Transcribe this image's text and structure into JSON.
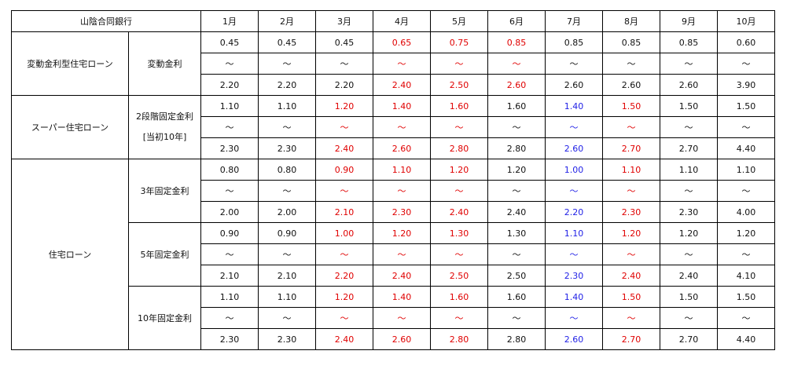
{
  "bank_name": "山陰合同銀行",
  "months": [
    "1月",
    "2月",
    "3月",
    "4月",
    "5月",
    "6月",
    "7月",
    "8月",
    "9月",
    "10月"
  ],
  "tilde": "～",
  "colors": {
    "red": "#e00000",
    "blue": "#1f1fe6",
    "black": "#111111"
  },
  "products": [
    {
      "name": "変動金利型住宅ローン",
      "plans": [
        {
          "name": [
            "変動金利"
          ],
          "low": [
            "0.45",
            "0.45",
            "0.45",
            "0.65",
            "0.75",
            "0.85",
            "0.85",
            "0.85",
            "0.85",
            "0.60"
          ],
          "high": [
            "2.20",
            "2.20",
            "2.20",
            "2.40",
            "2.50",
            "2.60",
            "2.60",
            "2.60",
            "2.60",
            "3.90"
          ],
          "color": [
            "black",
            "black",
            "black",
            "red",
            "red",
            "red",
            "black",
            "black",
            "black",
            "black"
          ]
        }
      ]
    },
    {
      "name": "スーパー住宅ローン",
      "plans": [
        {
          "name": [
            "2段階固定金利",
            "[当初10年]"
          ],
          "low": [
            "1.10",
            "1.10",
            "1.20",
            "1.40",
            "1.60",
            "1.60",
            "1.40",
            "1.50",
            "1.50",
            "1.50"
          ],
          "high": [
            "2.30",
            "2.30",
            "2.40",
            "2.60",
            "2.80",
            "2.80",
            "2.60",
            "2.70",
            "2.70",
            "4.40"
          ],
          "color": [
            "black",
            "black",
            "red",
            "red",
            "red",
            "black",
            "blue",
            "red",
            "black",
            "black"
          ]
        }
      ]
    },
    {
      "name": "住宅ローン",
      "plans": [
        {
          "name": [
            "3年固定金利"
          ],
          "low": [
            "0.80",
            "0.80",
            "0.90",
            "1.10",
            "1.20",
            "1.20",
            "1.00",
            "1.10",
            "1.10",
            "1.10"
          ],
          "high": [
            "2.00",
            "2.00",
            "2.10",
            "2.30",
            "2.40",
            "2.40",
            "2.20",
            "2.30",
            "2.30",
            "4.00"
          ],
          "color": [
            "black",
            "black",
            "red",
            "red",
            "red",
            "black",
            "blue",
            "red",
            "black",
            "black"
          ]
        },
        {
          "name": [
            "5年固定金利"
          ],
          "low": [
            "0.90",
            "0.90",
            "1.00",
            "1.20",
            "1.30",
            "1.30",
            "1.10",
            "1.20",
            "1.20",
            "1.20"
          ],
          "high": [
            "2.10",
            "2.10",
            "2.20",
            "2.40",
            "2.50",
            "2.50",
            "2.30",
            "2.40",
            "2.40",
            "4.10"
          ],
          "color": [
            "black",
            "black",
            "red",
            "red",
            "red",
            "black",
            "blue",
            "red",
            "black",
            "black"
          ]
        },
        {
          "name": [
            "10年固定金利"
          ],
          "low": [
            "1.10",
            "1.10",
            "1.20",
            "1.40",
            "1.60",
            "1.60",
            "1.40",
            "1.50",
            "1.50",
            "1.50"
          ],
          "high": [
            "2.30",
            "2.30",
            "2.40",
            "2.60",
            "2.80",
            "2.80",
            "2.60",
            "2.70",
            "2.70",
            "4.40"
          ],
          "color": [
            "black",
            "black",
            "red",
            "red",
            "red",
            "black",
            "blue",
            "red",
            "black",
            "black"
          ]
        }
      ]
    }
  ]
}
